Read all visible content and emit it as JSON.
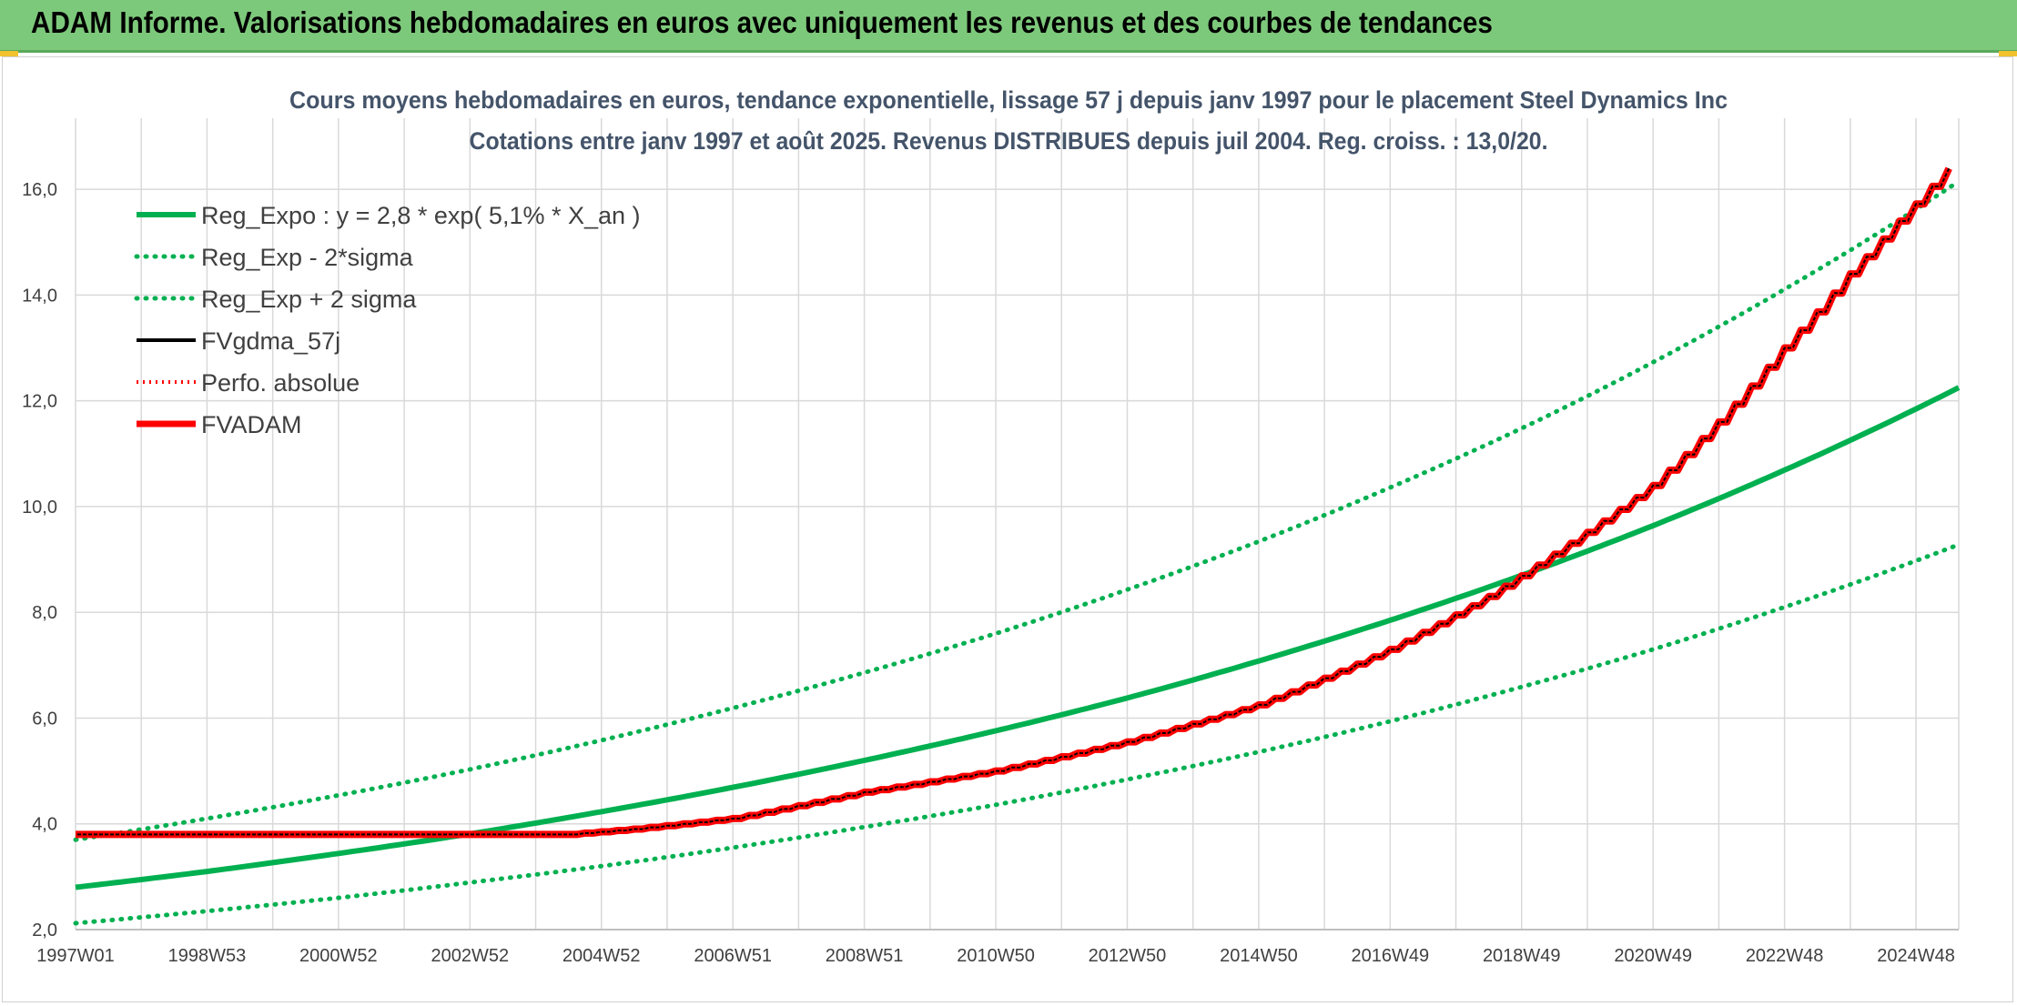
{
  "banner": {
    "title": "ADAM Informe. Valorisations hebdomadaires en euros avec uniquement les revenus et des courbes de tendances"
  },
  "colors": {
    "banner_bg": "#7dc97b",
    "green": "#00b050",
    "red": "#ff0000",
    "black": "#000000",
    "grid": "#d9d9d9",
    "title": "#44546a"
  },
  "chart_data": {
    "type": "line",
    "title": "Cours moyens hebdomadaires en euros, tendance exponentielle, lissage 57 j depuis janv 1997 pour le placement Steel Dynamics Inc",
    "subtitle": "Cotations entre janv 1997 et août 2025. Revenus DISTRIBUES depuis juil 2004. Reg. croiss. : 13,0/20.",
    "x_tick_labels": [
      "1997W01",
      "1998W53",
      "2000W52",
      "2002W52",
      "2004W52",
      "2006W51",
      "2008W51",
      "2010W50",
      "2012W50",
      "2014W50",
      "2016W49",
      "2018W49",
      "2020W49",
      "2022W48",
      "2024W48"
    ],
    "x_tick_years": [
      1997.0,
      1999.0,
      2001.0,
      2003.0,
      2005.0,
      2007.0,
      2009.0,
      2011.0,
      2013.0,
      2015.0,
      2017.0,
      2019.0,
      2021.0,
      2023.0,
      2025.0
    ],
    "x_range": [
      1997.0,
      2025.65
    ],
    "y_ticks": [
      "2,0",
      "4,0",
      "6,0",
      "8,0",
      "10,0",
      "12,0",
      "14,0",
      "16,0"
    ],
    "y_range": [
      2.0,
      17.0
    ],
    "grid": true,
    "legend_position": "top-left",
    "series": [
      {
        "name": "Reg_Expo : y = 2,8 * exp( 5,1% *  X_an )",
        "style": "solid",
        "color": "#00b050",
        "x": [
          1997,
          1999,
          2001,
          2003,
          2005,
          2007,
          2009,
          2011,
          2013,
          2015,
          2017,
          2019,
          2021,
          2023,
          2025.65
        ],
        "y": [
          2.8,
          3.1,
          3.44,
          3.81,
          4.23,
          4.69,
          5.2,
          5.76,
          6.38,
          7.08,
          7.85,
          8.7,
          9.64,
          10.69,
          12.25
        ]
      },
      {
        "name": "Reg_Exp - 2*sigma",
        "style": "dotted",
        "color": "#00b050",
        "x": [
          1997,
          1999,
          2001,
          2003,
          2005,
          2007,
          2009,
          2011,
          2013,
          2015,
          2017,
          2019,
          2021,
          2023,
          2025.65
        ],
        "y": [
          2.12,
          2.35,
          2.6,
          2.89,
          3.2,
          3.55,
          3.94,
          4.36,
          4.84,
          5.36,
          5.94,
          6.59,
          7.3,
          8.1,
          9.28
        ]
      },
      {
        "name": "Reg_Exp + 2 sigma",
        "style": "dotted",
        "color": "#00b050",
        "x": [
          1997,
          1999,
          2001,
          2003,
          2005,
          2007,
          2009,
          2011,
          2013,
          2015,
          2017,
          2019,
          2021,
          2023,
          2025.65
        ],
        "y": [
          3.7,
          4.1,
          4.54,
          5.03,
          5.58,
          6.19,
          6.86,
          7.6,
          8.43,
          9.34,
          10.36,
          11.48,
          12.73,
          14.11,
          16.15
        ]
      },
      {
        "name": "FVgdma_57j",
        "style": "solid",
        "color": "#000000",
        "x": [
          1997,
          2004.5,
          2005.5,
          2007,
          2009,
          2011,
          2013,
          2015,
          2017,
          2018.5,
          2019.5,
          2021,
          2022,
          2023,
          2024,
          2024.75,
          2025.65
        ],
        "y": [
          3.8,
          3.8,
          3.9,
          4.1,
          4.6,
          5.0,
          5.55,
          6.25,
          7.3,
          8.3,
          9.1,
          10.4,
          11.6,
          13.0,
          14.4,
          15.4,
          16.6
        ]
      },
      {
        "name": "Perfo. absolue",
        "style": "dotted",
        "color": "#ff0000",
        "x": [
          1997,
          2004.5,
          2005.5,
          2007,
          2009,
          2011,
          2013,
          2015,
          2017,
          2018.5,
          2019.5,
          2021,
          2022,
          2023,
          2024,
          2024.75,
          2025.65
        ],
        "y": [
          3.8,
          3.8,
          3.9,
          4.1,
          4.6,
          5.0,
          5.55,
          6.25,
          7.3,
          8.3,
          9.1,
          10.4,
          11.6,
          13.0,
          14.4,
          15.4,
          16.6
        ]
      },
      {
        "name": "FVADAM",
        "style": "solid-thick",
        "color": "#ff0000",
        "x": [
          1997,
          2004.5,
          2005.5,
          2007,
          2009,
          2011,
          2013,
          2015,
          2017,
          2018.5,
          2019.5,
          2021,
          2022,
          2023,
          2024,
          2024.75,
          2025.65
        ],
        "y": [
          3.8,
          3.8,
          3.9,
          4.1,
          4.6,
          5.0,
          5.55,
          6.25,
          7.3,
          8.3,
          9.1,
          10.4,
          11.6,
          13.0,
          14.4,
          15.4,
          16.6
        ]
      }
    ]
  }
}
